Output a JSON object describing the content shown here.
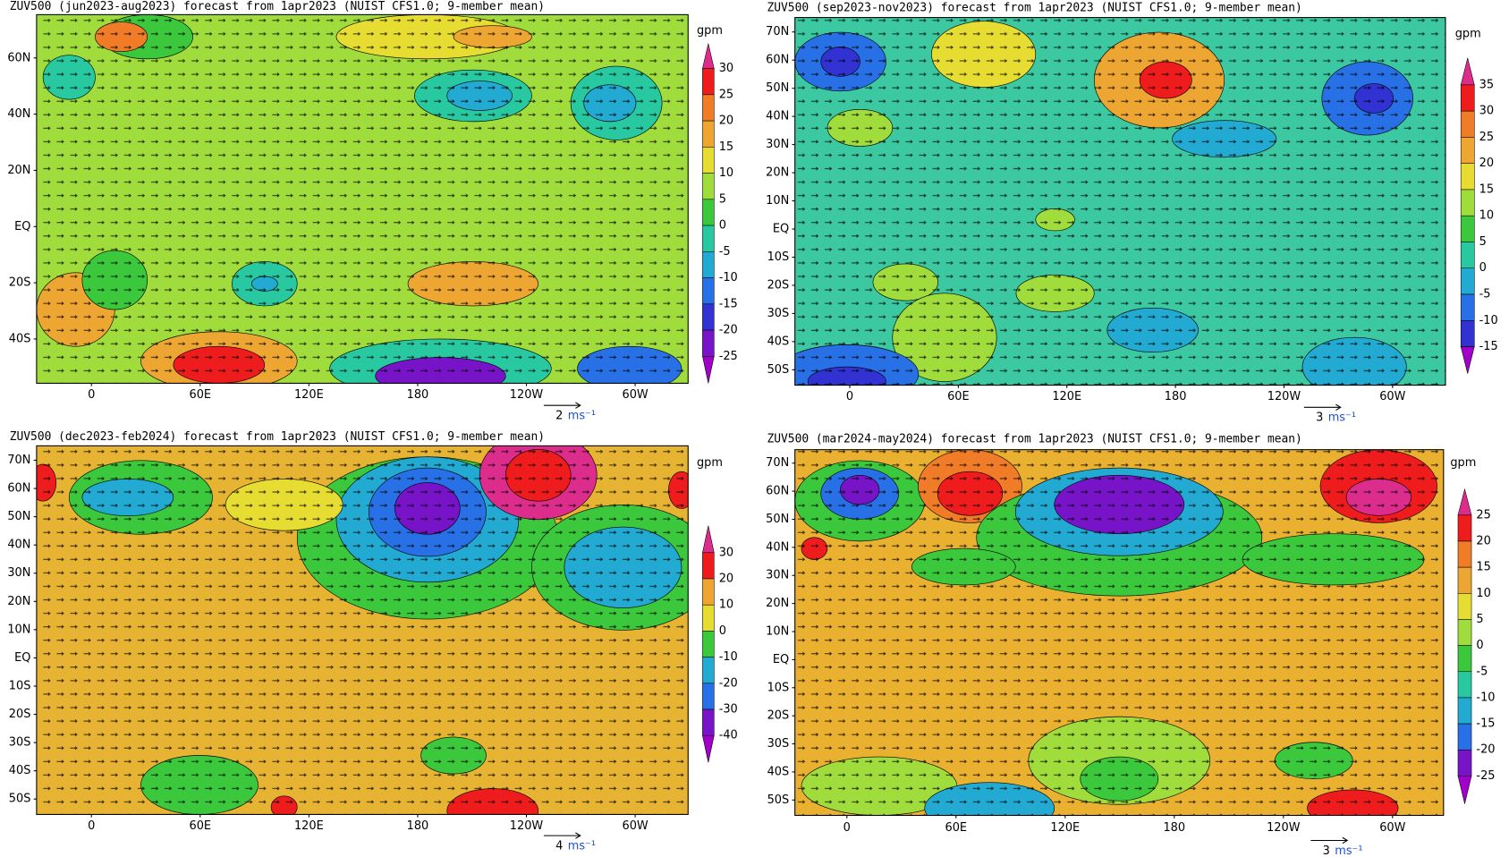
{
  "panels": [
    {
      "title": "ZUV500 (jun2023-aug2023) forecast from 1apr2023 (NUIST CFS1.0; 9-member mean)",
      "unit": "gpm",
      "lat_labels": [
        "60N",
        "40N",
        "20N",
        "EQ",
        "20S",
        "40S"
      ],
      "lon_labels": [
        "0",
        "60E",
        "120E",
        "180",
        "120W",
        "60W"
      ],
      "colorbar_labels": [
        30,
        25,
        20,
        15,
        10,
        5,
        0,
        -5,
        -10,
        -15,
        -20,
        -25
      ],
      "colors": [
        "#dc2c8c",
        "#ee1c1c",
        "#f07c28",
        "#eea632",
        "#e6dc32",
        "#a0dc3c",
        "#3cc83c",
        "#28c8a0",
        "#22aad2",
        "#2870e6",
        "#3232d2",
        "#7814c8",
        "#a000c8"
      ],
      "vector_ref": 2,
      "vector_unit": "ms⁻¹"
    },
    {
      "title": "ZUV500 (sep2023-nov2023) forecast from 1apr2023 (NUIST CFS1.0; 9-member mean)",
      "unit": "gpm",
      "lat_labels": [
        "70N",
        "60N",
        "50N",
        "40N",
        "30N",
        "20N",
        "10N",
        "EQ",
        "10S",
        "20S",
        "30S",
        "40S",
        "50S"
      ],
      "lon_labels": [
        "0",
        "60E",
        "120E",
        "180",
        "120W",
        "60W"
      ],
      "colorbar_labels": [
        35,
        30,
        25,
        20,
        15,
        10,
        5,
        0,
        -5,
        -10,
        -15
      ],
      "colors": [
        "#dc2c8c",
        "#ee1c1c",
        "#f07c28",
        "#eea632",
        "#e6dc32",
        "#a0dc3c",
        "#3cc83c",
        "#28c8a0",
        "#22aad2",
        "#2870e6",
        "#3232d2",
        "#a000c8"
      ],
      "vector_ref": 3,
      "vector_unit": "ms⁻¹"
    },
    {
      "title": "ZUV500 (dec2023-feb2024) forecast from 1apr2023 (NUIST CFS1.0; 9-member mean)",
      "unit": "gpm",
      "lat_labels": [
        "70N",
        "60N",
        "50N",
        "40N",
        "30N",
        "20N",
        "10N",
        "EQ",
        "10S",
        "20S",
        "30S",
        "40S",
        "50S"
      ],
      "lon_labels": [
        "0",
        "60E",
        "120E",
        "180",
        "120W",
        "60W"
      ],
      "colorbar_labels": [
        30,
        20,
        10,
        0,
        -10,
        -20,
        -30,
        -40
      ],
      "colors": [
        "#dc2c8c",
        "#ee1c1c",
        "#eea632",
        "#e6dc32",
        "#3cc83c",
        "#22aad2",
        "#2870e6",
        "#7814c8",
        "#a000c8"
      ],
      "vector_ref": 4,
      "vector_unit": "ms⁻¹"
    },
    {
      "title": "ZUV500 (mar2024-may2024) forecast from 1apr2023 (NUIST CFS1.0; 9-member mean)",
      "unit": "gpm",
      "lat_labels": [
        "70N",
        "60N",
        "50N",
        "40N",
        "30N",
        "20N",
        "10N",
        "EQ",
        "10S",
        "20S",
        "30S",
        "40S",
        "50S"
      ],
      "lon_labels": [
        "0",
        "60E",
        "120E",
        "180",
        "120W",
        "60W"
      ],
      "colorbar_labels": [
        25,
        20,
        15,
        10,
        5,
        0,
        -5,
        -10,
        -15,
        -20,
        -25
      ],
      "colors": [
        "#dc2c8c",
        "#ee1c1c",
        "#f07c28",
        "#eea632",
        "#e6dc32",
        "#a0dc3c",
        "#3cc83c",
        "#28c8a0",
        "#22aad2",
        "#2870e6",
        "#7814c8",
        "#a000c8"
      ],
      "vector_ref": 3,
      "vector_unit": "ms⁻¹"
    }
  ]
}
